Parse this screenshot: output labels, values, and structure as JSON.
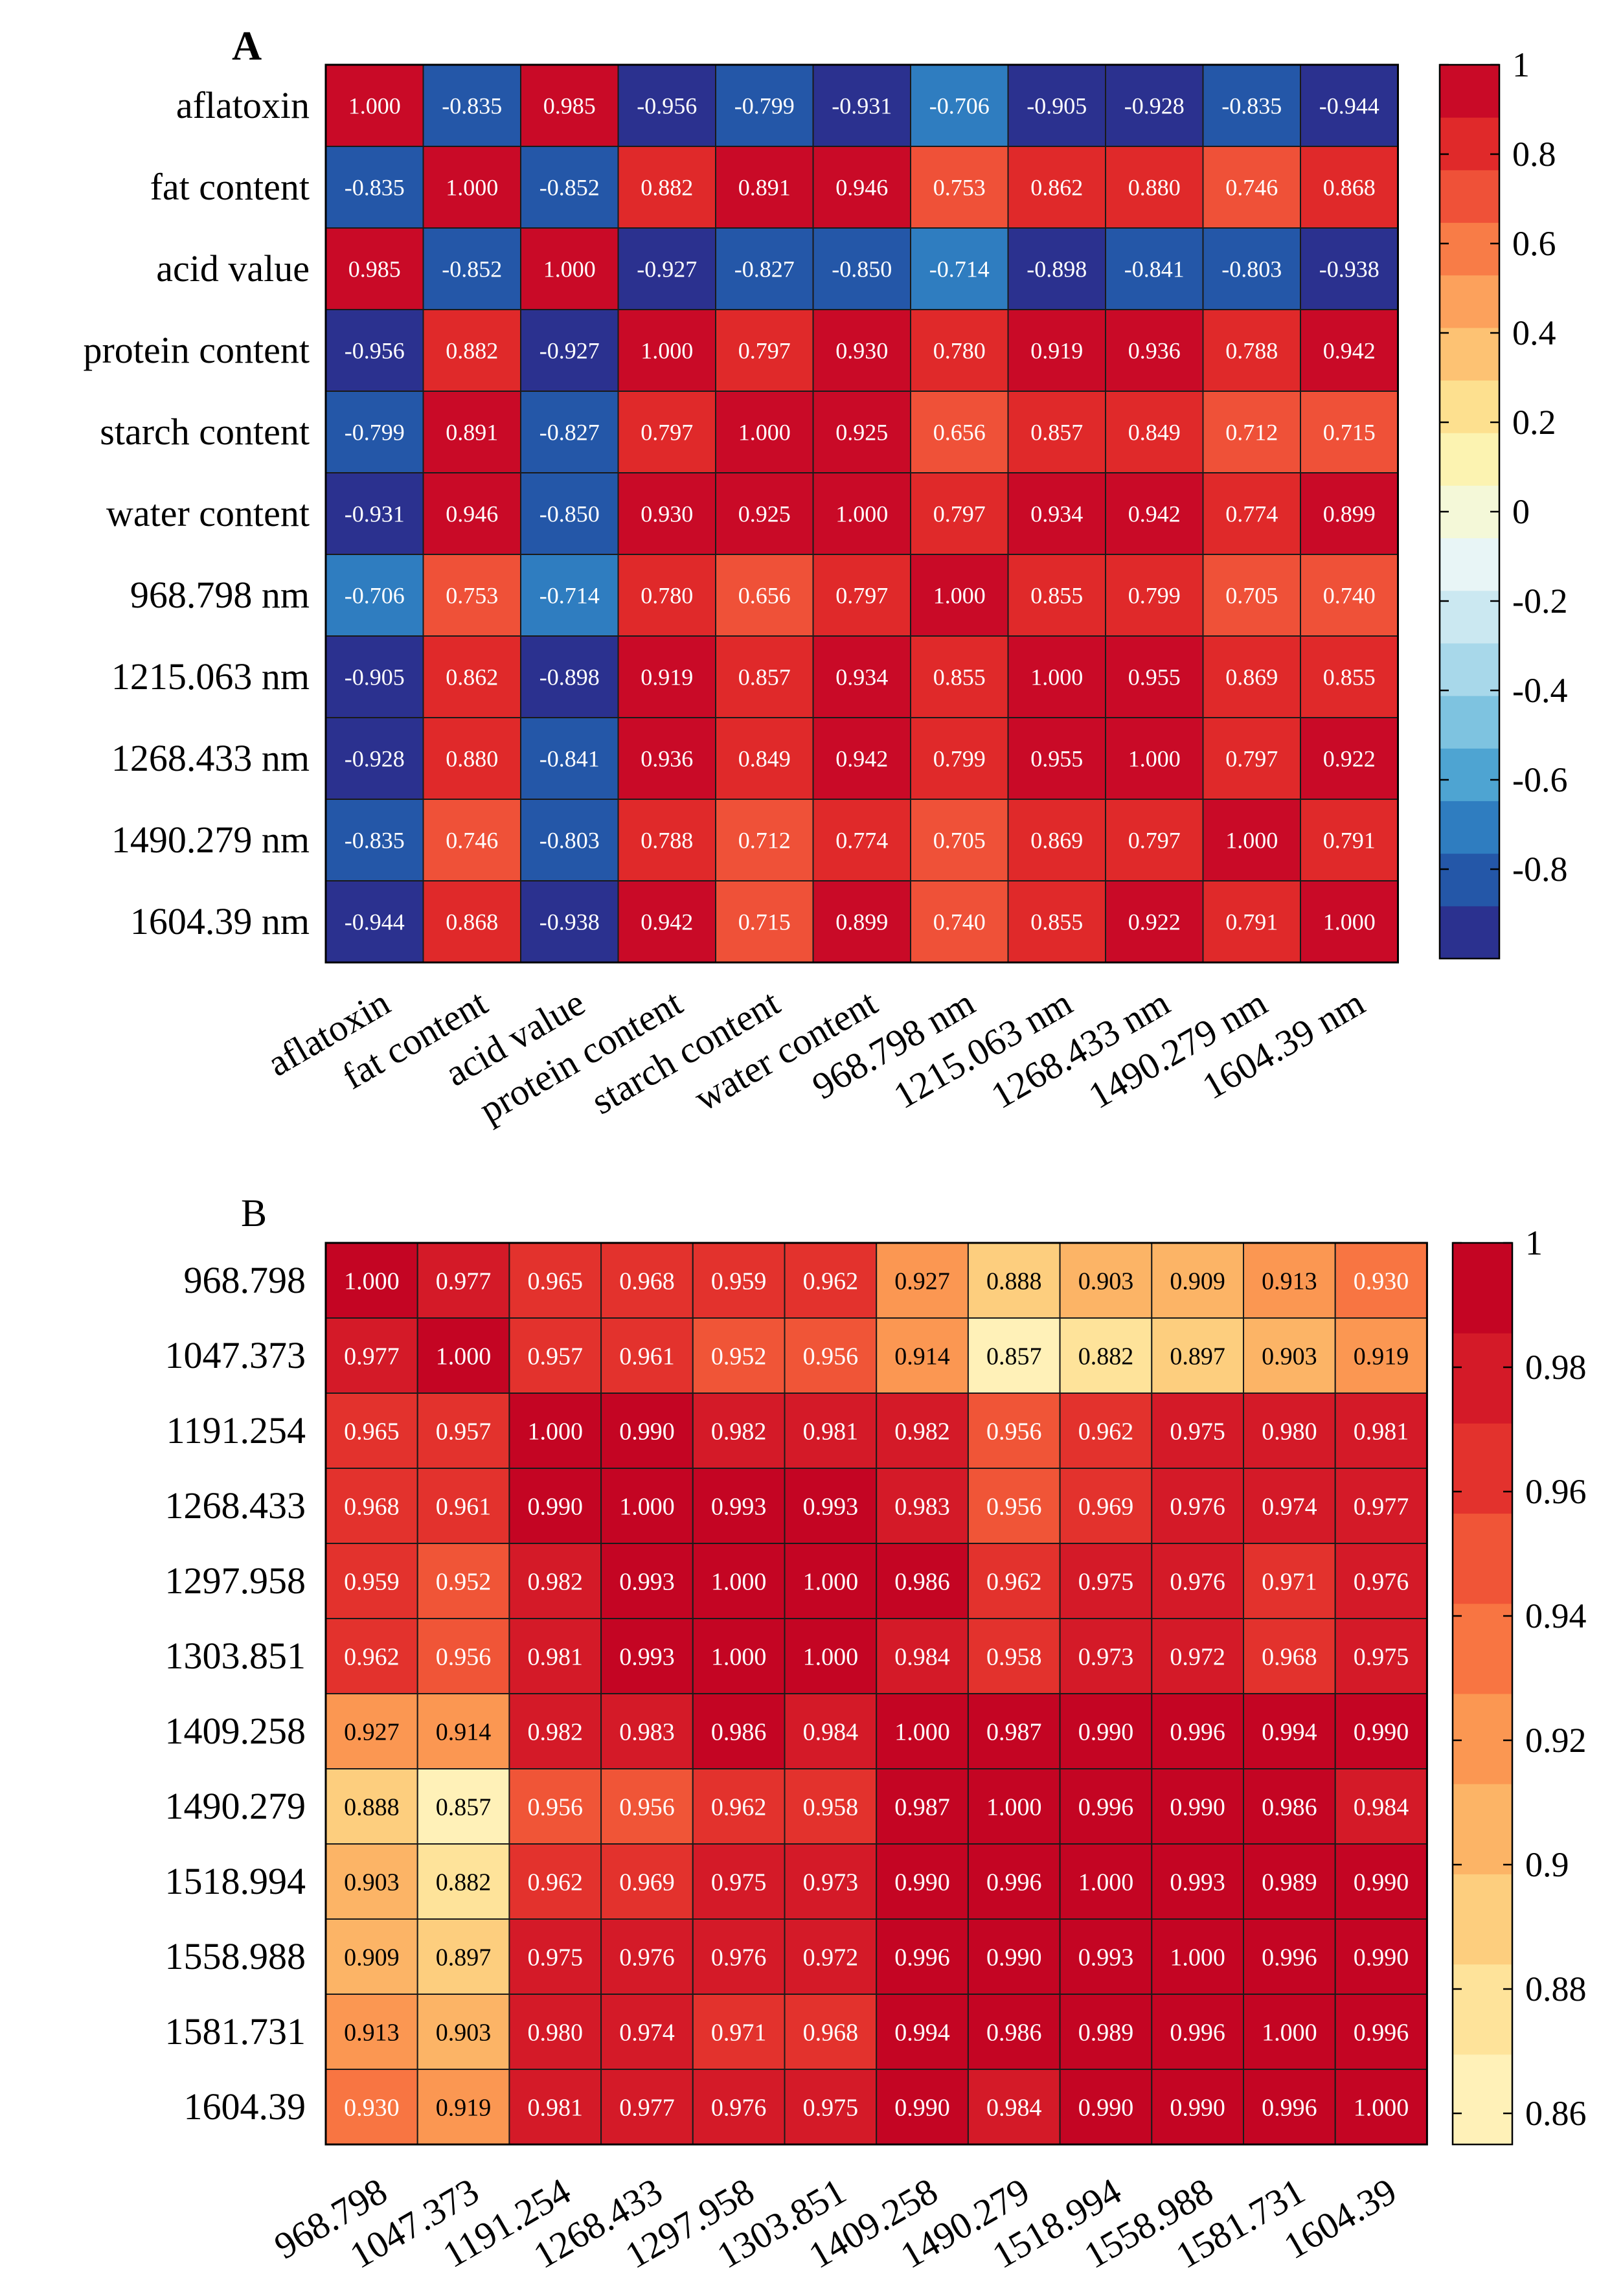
{
  "chart_data": [
    {
      "type": "heatmap",
      "panel_label": "A",
      "title": "",
      "xlabel": "",
      "ylabel": "",
      "categories": [
        "aflatoxin",
        "fat content",
        "acid value",
        "protein content",
        "starch content",
        "water content",
        "968.798 nm",
        "1215.063 nm",
        "1268.433 nm",
        "1490.279 nm",
        "1604.39 nm"
      ],
      "values": [
        [
          "1.000",
          "-0.835",
          "0.985",
          "-0.956",
          "-0.799",
          "-0.931",
          "-0.706",
          "-0.905",
          "-0.928",
          "-0.835",
          "-0.944"
        ],
        [
          "-0.835",
          "1.000",
          "-0.852",
          "0.882",
          "0.891",
          "0.946",
          "0.753",
          "0.862",
          "0.880",
          "0.746",
          "0.868"
        ],
        [
          "0.985",
          "-0.852",
          "1.000",
          "-0.927",
          "-0.827",
          "-0.850",
          "-0.714",
          "-0.898",
          "-0.841",
          "-0.803",
          "-0.938"
        ],
        [
          "-0.956",
          "0.882",
          "-0.927",
          "1.000",
          "0.797",
          "0.930",
          "0.780",
          "0.919",
          "0.936",
          "0.788",
          "0.942"
        ],
        [
          "-0.799",
          "0.891",
          "-0.827",
          "0.797",
          "1.000",
          "0.925",
          "0.656",
          "0.857",
          "0.849",
          "0.712",
          "0.715"
        ],
        [
          "-0.931",
          "0.946",
          "-0.850",
          "0.930",
          "0.925",
          "1.000",
          "0.797",
          "0.934",
          "0.942",
          "0.774",
          "0.899"
        ],
        [
          "-0.706",
          "0.753",
          "-0.714",
          "0.780",
          "0.656",
          "0.797",
          "1.000",
          "0.855",
          "0.799",
          "0.705",
          "0.740"
        ],
        [
          "-0.905",
          "0.862",
          "-0.898",
          "0.919",
          "0.857",
          "0.934",
          "0.855",
          "1.000",
          "0.955",
          "0.869",
          "0.855"
        ],
        [
          "-0.928",
          "0.880",
          "-0.841",
          "0.936",
          "0.849",
          "0.942",
          "0.799",
          "0.955",
          "1.000",
          "0.797",
          "0.922"
        ],
        [
          "-0.835",
          "0.746",
          "-0.803",
          "0.788",
          "0.712",
          "0.774",
          "0.705",
          "0.869",
          "0.797",
          "1.000",
          "0.791"
        ],
        [
          "-0.944",
          "0.868",
          "-0.938",
          "0.942",
          "0.715",
          "0.899",
          "0.740",
          "0.855",
          "0.922",
          "0.791",
          "1.000"
        ]
      ],
      "colorbar": {
        "ticks": [
          "1",
          "0.8",
          "0.6",
          "0.4",
          "0.2",
          "0",
          "-0.2",
          "-0.4",
          "-0.6",
          "-0.8"
        ],
        "range": [
          -1,
          1
        ],
        "colors": [
          "#2b318f",
          "#2457a8",
          "#2f7dc0",
          "#4ea4d2",
          "#7ec3e0",
          "#a8d8ea",
          "#cbe8f1",
          "#e8f5f6",
          "#f4f8d8",
          "#fcf3b1",
          "#fde08f",
          "#fdc273",
          "#fca15c",
          "#f87c47",
          "#ef5138",
          "#e0292a",
          "#c90a27"
        ]
      },
      "grid": true
    },
    {
      "type": "heatmap",
      "panel_label": "B",
      "title": "",
      "xlabel": "",
      "ylabel": "",
      "categories": [
        "968.798",
        "1047.373",
        "1191.254",
        "1268.433",
        "1297.958",
        "1303.851",
        "1409.258",
        "1490.279",
        "1518.994",
        "1558.988",
        "1581.731",
        "1604.39"
      ],
      "values": [
        [
          "1.000",
          "0.977",
          "0.965",
          "0.968",
          "0.959",
          "0.962",
          "0.927",
          "0.888",
          "0.903",
          "0.909",
          "0.913",
          "0.930"
        ],
        [
          "0.977",
          "1.000",
          "0.957",
          "0.961",
          "0.952",
          "0.956",
          "0.914",
          "0.857",
          "0.882",
          "0.897",
          "0.903",
          "0.919"
        ],
        [
          "0.965",
          "0.957",
          "1.000",
          "0.990",
          "0.982",
          "0.981",
          "0.982",
          "0.956",
          "0.962",
          "0.975",
          "0.980",
          "0.981"
        ],
        [
          "0.968",
          "0.961",
          "0.990",
          "1.000",
          "0.993",
          "0.993",
          "0.983",
          "0.956",
          "0.969",
          "0.976",
          "0.974",
          "0.977"
        ],
        [
          "0.959",
          "0.952",
          "0.982",
          "0.993",
          "1.000",
          "1.000",
          "0.986",
          "0.962",
          "0.975",
          "0.976",
          "0.971",
          "0.976"
        ],
        [
          "0.962",
          "0.956",
          "0.981",
          "0.993",
          "1.000",
          "1.000",
          "0.984",
          "0.958",
          "0.973",
          "0.972",
          "0.968",
          "0.975"
        ],
        [
          "0.927",
          "0.914",
          "0.982",
          "0.983",
          "0.986",
          "0.984",
          "1.000",
          "0.987",
          "0.990",
          "0.996",
          "0.994",
          "0.990"
        ],
        [
          "0.888",
          "0.857",
          "0.956",
          "0.956",
          "0.962",
          "0.958",
          "0.987",
          "1.000",
          "0.996",
          "0.990",
          "0.986",
          "0.984"
        ],
        [
          "0.903",
          "0.882",
          "0.962",
          "0.969",
          "0.975",
          "0.973",
          "0.990",
          "0.996",
          "1.000",
          "0.993",
          "0.989",
          "0.990"
        ],
        [
          "0.909",
          "0.897",
          "0.975",
          "0.976",
          "0.976",
          "0.972",
          "0.996",
          "0.990",
          "0.993",
          "1.000",
          "0.996",
          "0.990"
        ],
        [
          "0.913",
          "0.903",
          "0.980",
          "0.974",
          "0.971",
          "0.968",
          "0.994",
          "0.986",
          "0.989",
          "0.996",
          "1.000",
          "0.996"
        ],
        [
          "0.930",
          "0.919",
          "0.981",
          "0.977",
          "0.976",
          "0.975",
          "0.990",
          "0.984",
          "0.990",
          "0.990",
          "0.996",
          "1.000"
        ]
      ],
      "colorbar": {
        "ticks": [
          "1",
          "0.98",
          "0.96",
          "0.94",
          "0.92",
          "0.9",
          "0.88",
          "0.86"
        ],
        "range": [
          0.855,
          1.0
        ],
        "colors": [
          "#fff1b8",
          "#fee39a",
          "#fdce7e",
          "#fcb466",
          "#fb9752",
          "#f87542",
          "#f05537",
          "#e3322d",
          "#d41a28",
          "#c40523"
        ]
      },
      "grid": true
    }
  ]
}
